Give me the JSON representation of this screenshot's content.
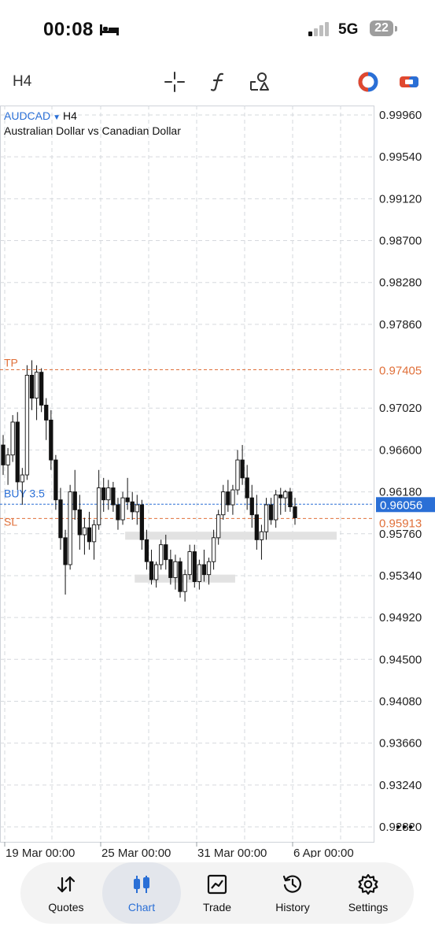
{
  "status": {
    "time": "00:08",
    "network": "5G",
    "battery": "22"
  },
  "toolbar": {
    "timeframe": "H4"
  },
  "chart": {
    "symbol": "AUDCAD",
    "timeframe": "H4",
    "description": "Australian Dollar vs Canadian Dollar",
    "price_axis": [
      "0.99960",
      "0.99540",
      "0.99120",
      "0.98700",
      "0.98280",
      "0.97860",
      "0.97405",
      "0.97020",
      "0.96600",
      "0.96180",
      "0.96056",
      "0.95913",
      "0.95760",
      "0.95340",
      "0.94920",
      "0.94500",
      "0.94080",
      "0.93660",
      "0.93240",
      "0.92820"
    ],
    "time_axis": [
      "19 Mar 00:00",
      "25 Mar 00:00",
      "31 Mar 00:00",
      "6 Apr 00:00"
    ],
    "levels": {
      "tp": {
        "label": "TP",
        "price": 0.97405,
        "price_text": "0.97405",
        "color": "#e0703a"
      },
      "buy": {
        "label": "BUY 3.5",
        "price": 0.96056,
        "price_text": "0.96056",
        "color": "#2a6fd6"
      },
      "sl": {
        "label": "SL",
        "price": 0.95913,
        "price_text": "0.95913",
        "color": "#e0703a"
      }
    }
  },
  "chart_data": {
    "type": "candlestick",
    "symbol": "AUDCAD",
    "timeframe": "H4",
    "ylim": [
      0.926,
      1.0005
    ],
    "grid": true,
    "candles": [
      [
        0.9665,
        0.9675,
        0.9635,
        0.9645
      ],
      [
        0.9645,
        0.9662,
        0.9625,
        0.9655
      ],
      [
        0.9655,
        0.9695,
        0.9648,
        0.9688
      ],
      [
        0.9688,
        0.9698,
        0.962,
        0.9628
      ],
      [
        0.9628,
        0.9642,
        0.9605,
        0.9635
      ],
      [
        0.9635,
        0.9745,
        0.963,
        0.9735
      ],
      [
        0.9735,
        0.975,
        0.97,
        0.9712
      ],
      [
        0.9712,
        0.9745,
        0.969,
        0.9738
      ],
      [
        0.9738,
        0.9742,
        0.9698,
        0.9705
      ],
      [
        0.9705,
        0.9712,
        0.967,
        0.969
      ],
      [
        0.969,
        0.97,
        0.964,
        0.965
      ],
      [
        0.965,
        0.9655,
        0.96,
        0.961
      ],
      [
        0.961,
        0.9622,
        0.956,
        0.9572
      ],
      [
        0.9572,
        0.958,
        0.9515,
        0.9545
      ],
      [
        0.9545,
        0.9625,
        0.954,
        0.9618
      ],
      [
        0.9618,
        0.964,
        0.959,
        0.96
      ],
      [
        0.96,
        0.9615,
        0.956,
        0.9575
      ],
      [
        0.9575,
        0.9592,
        0.9555,
        0.9582
      ],
      [
        0.9582,
        0.9598,
        0.956,
        0.9568
      ],
      [
        0.9568,
        0.959,
        0.955,
        0.9585
      ],
      [
        0.9585,
        0.964,
        0.958,
        0.9622
      ],
      [
        0.9622,
        0.9632,
        0.9598,
        0.961
      ],
      [
        0.961,
        0.963,
        0.96,
        0.9622
      ],
      [
        0.9622,
        0.9628,
        0.9598,
        0.9605
      ],
      [
        0.9605,
        0.9612,
        0.958,
        0.959
      ],
      [
        0.959,
        0.9618,
        0.9585,
        0.9612
      ],
      [
        0.9612,
        0.9632,
        0.96,
        0.9608
      ],
      [
        0.9608,
        0.9618,
        0.959,
        0.9598
      ],
      [
        0.9598,
        0.9615,
        0.9585,
        0.9605
      ],
      [
        0.9605,
        0.961,
        0.956,
        0.957
      ],
      [
        0.957,
        0.958,
        0.954,
        0.9548
      ],
      [
        0.9548,
        0.956,
        0.9525,
        0.953
      ],
      [
        0.953,
        0.9548,
        0.9522,
        0.9545
      ],
      [
        0.9545,
        0.957,
        0.954,
        0.9565
      ],
      [
        0.9565,
        0.9575,
        0.954,
        0.955
      ],
      [
        0.955,
        0.956,
        0.9525,
        0.9532
      ],
      [
        0.9532,
        0.9555,
        0.952,
        0.9548
      ],
      [
        0.9548,
        0.9552,
        0.9512,
        0.9518
      ],
      [
        0.9518,
        0.954,
        0.9508,
        0.9535
      ],
      [
        0.9535,
        0.9565,
        0.953,
        0.9558
      ],
      [
        0.9558,
        0.9565,
        0.9522,
        0.9528
      ],
      [
        0.9528,
        0.955,
        0.952,
        0.9545
      ],
      [
        0.9545,
        0.956,
        0.9528,
        0.9535
      ],
      [
        0.9535,
        0.9552,
        0.9525,
        0.9548
      ],
      [
        0.9548,
        0.958,
        0.954,
        0.9572
      ],
      [
        0.9572,
        0.96,
        0.9565,
        0.9595
      ],
      [
        0.9595,
        0.9625,
        0.959,
        0.9618
      ],
      [
        0.9618,
        0.963,
        0.9598,
        0.9605
      ],
      [
        0.9605,
        0.9625,
        0.9595,
        0.962
      ],
      [
        0.962,
        0.966,
        0.9615,
        0.965
      ],
      [
        0.965,
        0.9665,
        0.9625,
        0.9632
      ],
      [
        0.9632,
        0.9645,
        0.96,
        0.9612
      ],
      [
        0.9612,
        0.9625,
        0.9582,
        0.9595
      ],
      [
        0.9595,
        0.9615,
        0.956,
        0.957
      ],
      [
        0.957,
        0.9585,
        0.955,
        0.9578
      ],
      [
        0.9578,
        0.9612,
        0.957,
        0.9605
      ],
      [
        0.9605,
        0.9612,
        0.9585,
        0.959
      ],
      [
        0.959,
        0.962,
        0.9582,
        0.9615
      ],
      [
        0.9615,
        0.9622,
        0.9595,
        0.9612
      ],
      [
        0.9612,
        0.962,
        0.9598,
        0.9618
      ],
      [
        0.9618,
        0.9622,
        0.9598,
        0.9603
      ],
      [
        0.9603,
        0.9612,
        0.9585,
        0.9592
      ]
    ],
    "levels": [
      {
        "name": "TP",
        "value": 0.97405
      },
      {
        "name": "BUY 3.5",
        "value": 0.96056
      },
      {
        "name": "SL",
        "value": 0.95913
      }
    ],
    "zones": [
      {
        "from": 0.957,
        "to": 0.9578,
        "start_index": 26,
        "end_index": 61
      },
      {
        "from": 0.9527,
        "to": 0.9535,
        "start_index": 28,
        "end_index": 48
      }
    ]
  },
  "nav": {
    "items": [
      {
        "label": "Quotes",
        "icon": "quotes-icon"
      },
      {
        "label": "Chart",
        "icon": "chart-icon",
        "active": true
      },
      {
        "label": "Trade",
        "icon": "trade-icon"
      },
      {
        "label": "History",
        "icon": "history-icon"
      },
      {
        "label": "Settings",
        "icon": "settings-icon"
      }
    ]
  }
}
